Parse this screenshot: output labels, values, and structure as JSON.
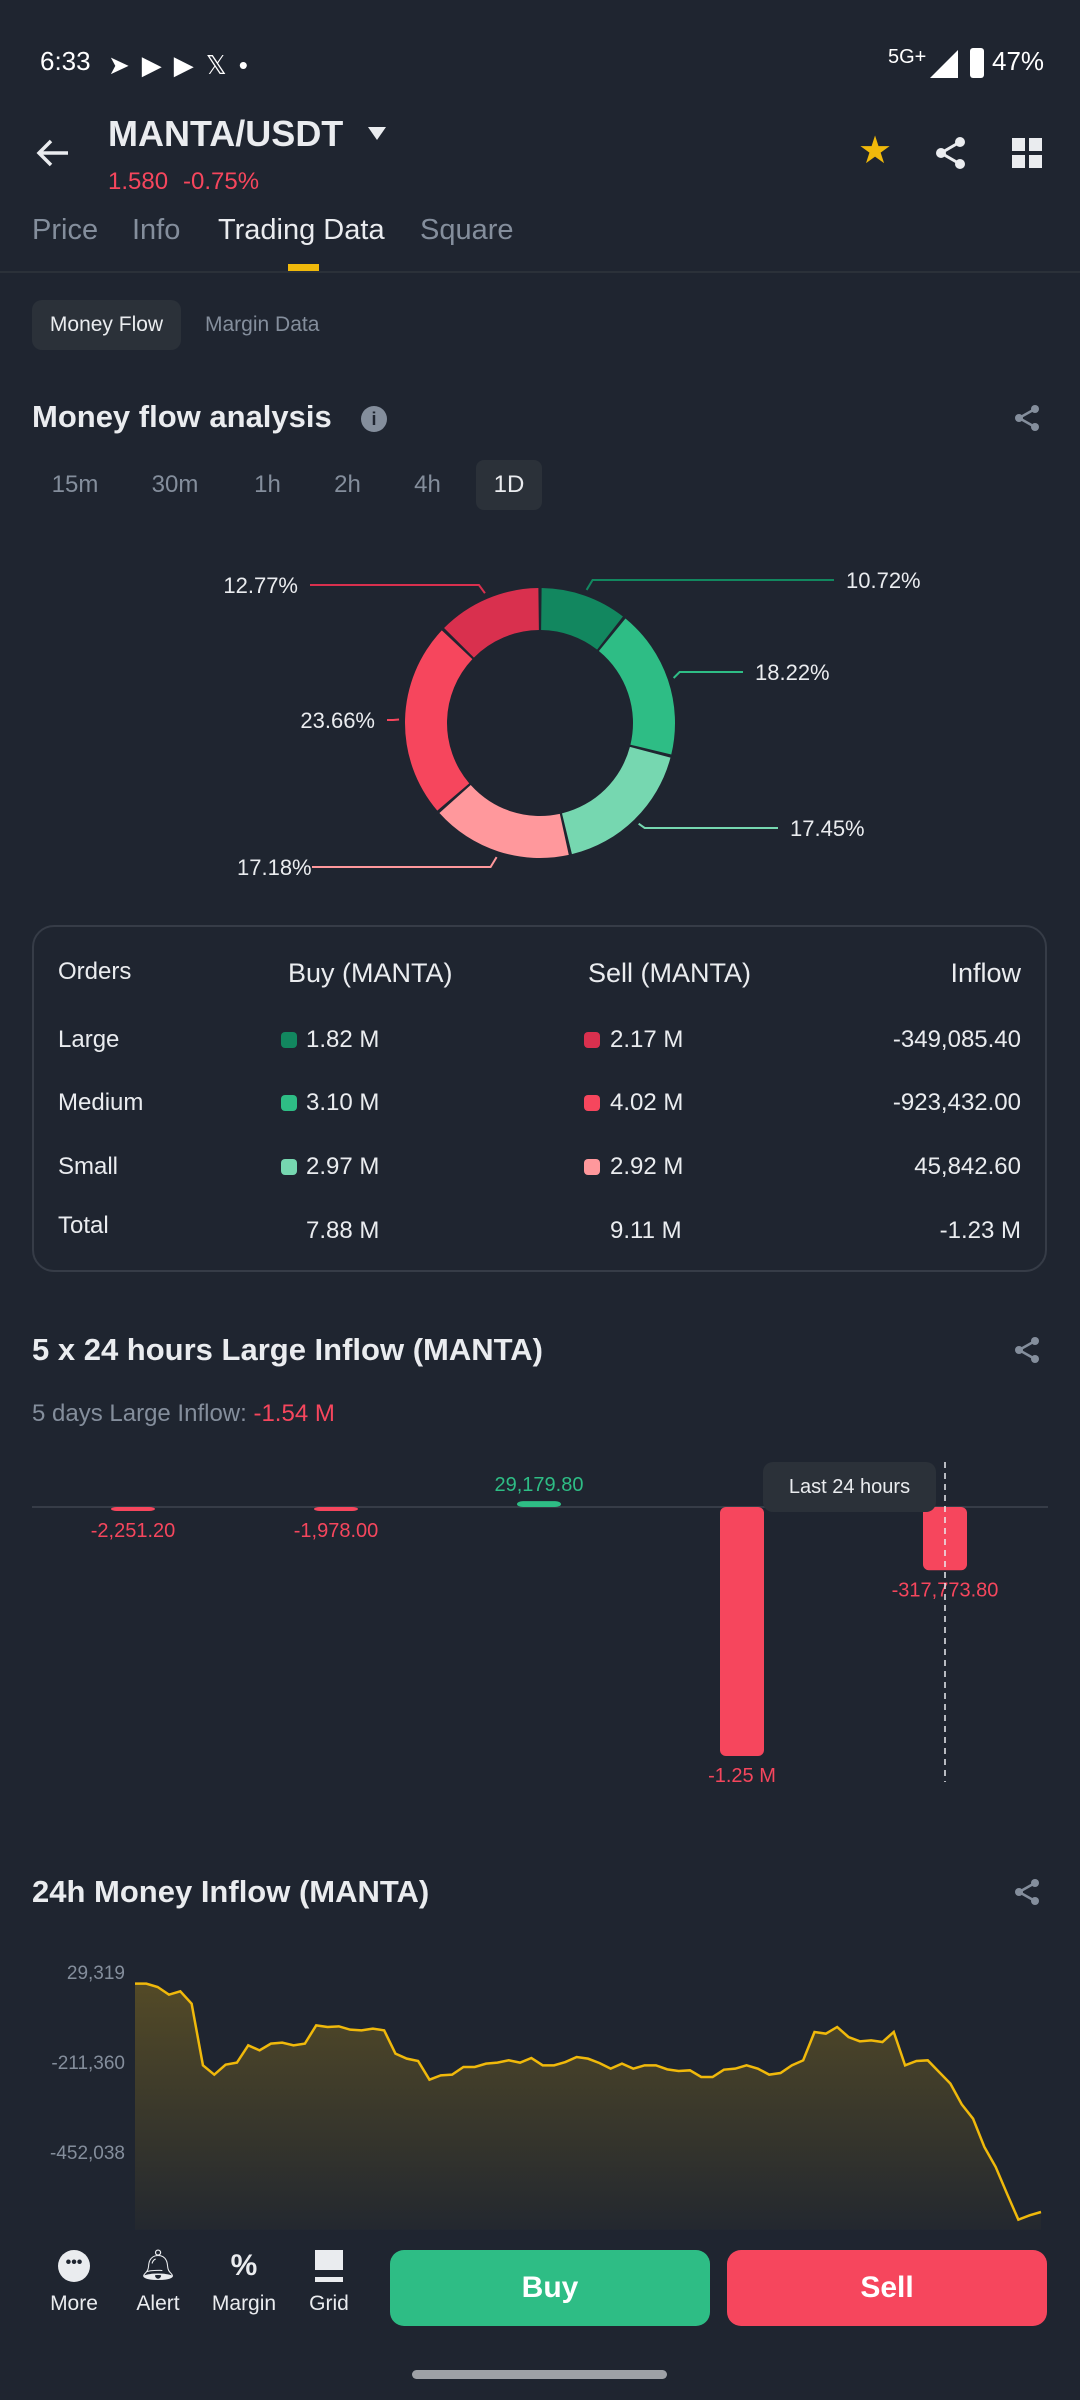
{
  "status_bar": {
    "time": "6:33",
    "network": "5G+",
    "battery": "47%"
  },
  "header": {
    "pair": "MANTA/USDT",
    "price": "1.580",
    "change": "-0.75%"
  },
  "tabs": [
    {
      "label": "Price"
    },
    {
      "label": "Info"
    },
    {
      "label": "Trading Data",
      "active": true
    },
    {
      "label": "Square"
    }
  ],
  "subtabs": [
    {
      "label": "Money Flow",
      "active": true
    },
    {
      "label": "Margin Data"
    }
  ],
  "money_flow": {
    "title": "Money flow analysis",
    "timeframes": [
      "15m",
      "30m",
      "1h",
      "2h",
      "4h",
      "1D"
    ],
    "selected_timeframe": "1D",
    "table": {
      "headers": [
        "Orders",
        "Buy (MANTA)",
        "Sell (MANTA)",
        "Inflow"
      ],
      "rows": [
        {
          "label": "Large",
          "buy": "1.82 M",
          "sell": "2.17 M",
          "inflow": "-349,085.40"
        },
        {
          "label": "Medium",
          "buy": "3.10 M",
          "sell": "4.02 M",
          "inflow": "-923,432.00"
        },
        {
          "label": "Small",
          "buy": "2.97 M",
          "sell": "2.92 M",
          "inflow": "45,842.60"
        },
        {
          "label": "Total",
          "buy": "7.88 M",
          "sell": "9.11 M",
          "inflow": "-1.23 M"
        }
      ]
    }
  },
  "large_inflow": {
    "title": "5 x 24 hours Large Inflow (MANTA)",
    "summary_label": "5 days Large Inflow: ",
    "summary_value": "-1.54 M",
    "tooltip": "Last 24 hours"
  },
  "inflow_24h": {
    "title": "24h Money Inflow (MANTA)"
  },
  "bottom_nav": {
    "items": [
      "More",
      "Alert",
      "Margin",
      "Grid"
    ],
    "buy": "Buy",
    "sell": "Sell"
  },
  "colors": {
    "bg": "#1f2530",
    "up": "#2ebd85",
    "down": "#f6465d",
    "accent": "#f0b90b"
  },
  "chart_data": [
    {
      "type": "pie",
      "title": "",
      "donut": true,
      "labels": [
        "10.72%",
        "18.22%",
        "17.45%",
        "17.18%",
        "23.66%",
        "12.77%"
      ],
      "values": [
        10.72,
        18.22,
        17.45,
        17.18,
        23.66,
        12.77
      ],
      "series_meaning": [
        "Large buy",
        "Medium buy",
        "Small buy",
        "Small sell",
        "Medium sell",
        "Large sell"
      ],
      "colors": [
        "#12875f",
        "#2ebd85",
        "#76d7b0",
        "#ff989c",
        "#f6465d",
        "#d9304e"
      ]
    },
    {
      "type": "bar",
      "title": "5 x 24 hours Large Inflow (MANTA)",
      "values": [
        -2251.2,
        -1978.0,
        29179.8,
        -1250000,
        -317773.8
      ],
      "labels": [
        "-2,251.20",
        "-1,978.00",
        "29,179.80",
        "-1.25 M",
        "-317,773.80"
      ]
    },
    {
      "type": "area",
      "title": "24h Money Inflow (MANTA)",
      "yticks": [
        29319,
        -211360,
        -452038
      ],
      "ytick_labels": [
        "29,319",
        "-211,360",
        "-452,038"
      ],
      "ylim": [
        -660000,
        60000
      ],
      "values": [
        -1900,
        -1900,
        -10800,
        -31300,
        -22400,
        -55400,
        -220300,
        -245200,
        -218500,
        -213100,
        -166800,
        -180200,
        -162300,
        -159700,
        -166800,
        -162300,
        -113300,
        -117700,
        -116000,
        -124900,
        -126700,
        -122200,
        -126700,
        -189100,
        -202400,
        -208700,
        -258600,
        -247000,
        -245200,
        -224700,
        -224700,
        -215800,
        -213100,
        -206900,
        -213100,
        -200700,
        -220300,
        -220300,
        -211400,
        -198000,
        -202400,
        -214000,
        -229200,
        -215800,
        -229200,
        -220300,
        -220300,
        -231000,
        -235400,
        -233600,
        -251500,
        -251500,
        -231900,
        -229200,
        -220300,
        -229200,
        -245200,
        -240800,
        -220300,
        -206900,
        -131100,
        -135600,
        -117700,
        -144500,
        -156100,
        -153400,
        -157900,
        -131100,
        -220300,
        -208700,
        -206900,
        -238100,
        -269300,
        -324600,
        -362900,
        -438700,
        -492200,
        -563500,
        -633000,
        -621400,
        -612500
      ],
      "color": "#f0b90b"
    }
  ]
}
